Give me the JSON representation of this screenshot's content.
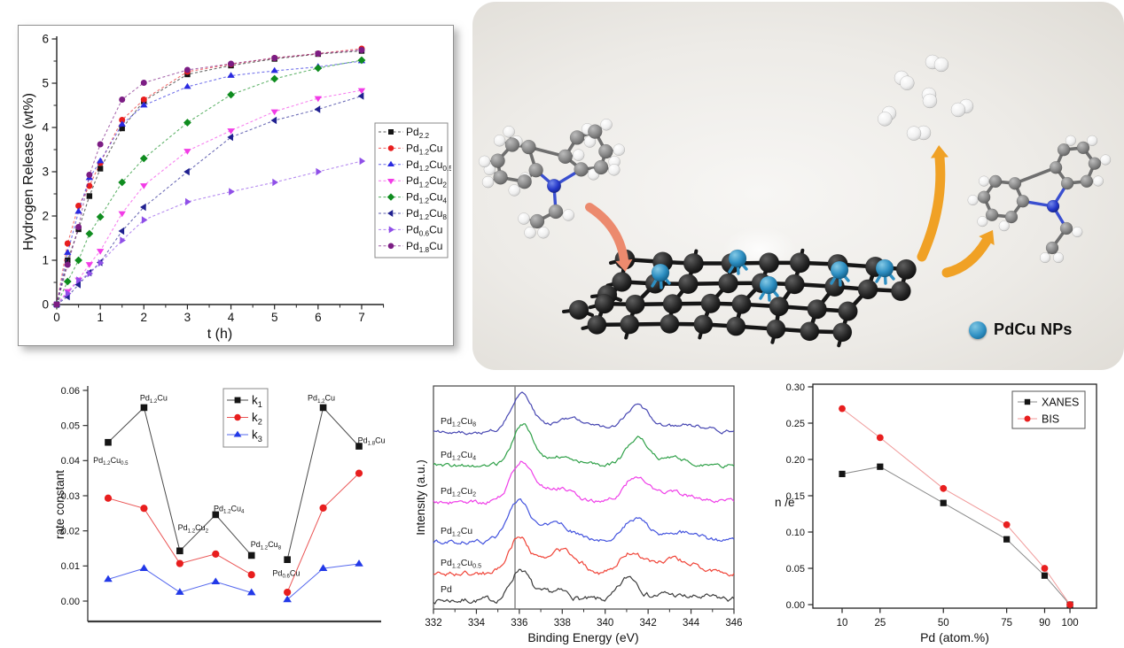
{
  "figure": {
    "scheme": {
      "legend_label": "PdCu NPs",
      "colors": {
        "reactant_arrow": "#ec8a6e",
        "release_arrow": "#f0a125",
        "nanoparticle": "#2e8fc2",
        "carbon_support": "#262626",
        "carbon_atom": "#8a8a8a",
        "hydrogen_atom": "#f4f4f4",
        "nitrogen_atom": "#2336c8"
      }
    }
  },
  "chart_data": [
    {
      "id": "hydrogen-release",
      "type": "line",
      "title": "",
      "xlabel": "t (h)",
      "ylabel": "Hydrogen Release (wt%)",
      "xlim": [
        0,
        7.5
      ],
      "ylim": [
        0,
        6
      ],
      "xticks": [
        0,
        1,
        2,
        3,
        4,
        5,
        6,
        7
      ],
      "yticks": [
        0,
        1,
        2,
        3,
        4,
        5,
        6
      ],
      "grid": false,
      "legend_position": "right",
      "x": [
        0,
        0.25,
        0.5,
        0.75,
        1,
        1.5,
        2,
        3,
        4,
        5,
        6,
        7
      ],
      "series": [
        {
          "name": "Pd_{2.2}",
          "color": "#151515",
          "marker": "square",
          "values": [
            0,
            1.0,
            1.7,
            2.45,
            3.07,
            3.98,
            4.6,
            5.2,
            5.4,
            5.55,
            5.66,
            5.73
          ]
        },
        {
          "name": "Pd_{1.2}Cu",
          "color": "#e81e1e",
          "marker": "circle",
          "values": [
            0,
            1.38,
            2.23,
            2.68,
            3.2,
            4.17,
            4.63,
            5.26,
            5.43,
            5.57,
            5.67,
            5.78
          ]
        },
        {
          "name": "Pd_{1.2}Cu_{0.5}",
          "color": "#2a2ae0",
          "marker": "triangle-up",
          "values": [
            0,
            1.17,
            2.1,
            2.86,
            3.24,
            4.07,
            4.5,
            4.92,
            5.17,
            5.28,
            5.37,
            5.5
          ]
        },
        {
          "name": "Pd_{1.2}Cu_{2}",
          "color": "#f23ce6",
          "marker": "triangle-down",
          "values": [
            0,
            0.3,
            0.56,
            0.91,
            1.21,
            2.06,
            2.69,
            3.47,
            3.93,
            4.36,
            4.66,
            4.84
          ]
        },
        {
          "name": "Pd_{1.2}Cu_{4}",
          "color": "#0f8c1f",
          "marker": "diamond",
          "values": [
            0,
            0.52,
            1.0,
            1.6,
            1.98,
            2.76,
            3.3,
            4.11,
            4.74,
            5.1,
            5.34,
            5.52
          ]
        },
        {
          "name": "Pd_{1.2}Cu_{8}",
          "color": "#202090",
          "marker": "triangle-left",
          "values": [
            0,
            0.18,
            0.45,
            0.72,
            0.95,
            1.66,
            2.2,
            3.0,
            3.78,
            4.16,
            4.41,
            4.71
          ]
        },
        {
          "name": "Pd_{0.6}Cu",
          "color": "#8f4fe8",
          "marker": "triangle-right",
          "values": [
            0,
            0.25,
            0.55,
            0.7,
            0.94,
            1.45,
            1.91,
            2.32,
            2.55,
            2.76,
            3.0,
            3.24
          ]
        },
        {
          "name": "Pd_{1.8}Cu",
          "color": "#7c1d84",
          "marker": "circle",
          "values": [
            0,
            0.9,
            1.75,
            2.93,
            3.62,
            4.63,
            5.01,
            5.3,
            5.44,
            5.57,
            5.67,
            5.75
          ]
        }
      ]
    },
    {
      "id": "rate-constant",
      "type": "scatter",
      "xlabel": "",
      "ylabel": "rate constant",
      "ylim": [
        -0.006,
        0.062
      ],
      "yticks": [
        0.0,
        0.01,
        0.02,
        0.03,
        0.04,
        0.05,
        0.06
      ],
      "grid": false,
      "legend_position": "top-center",
      "series": [
        {
          "name": "k_{1}",
          "color": "#151515",
          "line_color": "#4a4a4a",
          "marker": "square",
          "segments": [
            {
              "x": [
                1,
                2,
                3,
                4,
                5
              ],
              "values": [
                0.0452,
                0.0551,
                0.0143,
                0.0246,
                0.013
              ]
            },
            {
              "x": [
                6,
                7,
                8
              ],
              "values": [
                0.0118,
                0.0551,
                0.0441
              ]
            }
          ]
        },
        {
          "name": "k_{2}",
          "color": "#e81e1e",
          "line_color": "#ea5555",
          "marker": "circle",
          "segments": [
            {
              "x": [
                1,
                2,
                3,
                4,
                5
              ],
              "values": [
                0.0293,
                0.0264,
                0.0107,
                0.0134,
                0.0075
              ]
            },
            {
              "x": [
                6,
                7,
                8
              ],
              "values": [
                0.0025,
                0.0265,
                0.0364
              ]
            }
          ]
        },
        {
          "name": "k_{3}",
          "color": "#2239e8",
          "line_color": "#5568ee",
          "marker": "triangle-up",
          "segments": [
            {
              "x": [
                1,
                2,
                3,
                4,
                5
              ],
              "values": [
                0.0062,
                0.0093,
                0.0025,
                0.0055,
                0.0024
              ]
            },
            {
              "x": [
                6,
                7,
                8
              ],
              "values": [
                0.0004,
                0.0093,
                0.0106
              ]
            }
          ]
        }
      ],
      "point_labels": [
        {
          "text": "Pd_{1.2}Cu_{0.5}",
          "x": 1.07,
          "y": 0.0401
        },
        {
          "text": "Pd_{1.2}Cu",
          "x": 2.27,
          "y": 0.0578
        },
        {
          "text": "Pd_{1.2}Cu_{2}",
          "x": 3.37,
          "y": 0.0209
        },
        {
          "text": "Pd_{1.2}Cu_{4}",
          "x": 4.37,
          "y": 0.0264
        },
        {
          "text": "Pd_{1.2}Cu_{8}",
          "x": 5.4,
          "y": 0.0161
        },
        {
          "text": "Pd_{0.6}Cu",
          "x": 5.97,
          "y": 0.008
        },
        {
          "text": "Pd_{1.2}Cu",
          "x": 6.95,
          "y": 0.0578
        },
        {
          "text": "Pd_{1.8}Cu",
          "x": 8.35,
          "y": 0.0458
        }
      ]
    },
    {
      "id": "pd3d-xps",
      "type": "line",
      "xlabel": "Binding Energy (eV)",
      "ylabel": "Intensity (a.u.)",
      "xlim": [
        332,
        346
      ],
      "xticks": [
        332,
        334,
        336,
        338,
        340,
        342,
        344,
        346
      ],
      "ref_line_x": 335.8,
      "grid": false,
      "curves": [
        {
          "label": "Pd",
          "color": "#3c3c3c",
          "peaks": [
            [
              336.05,
              0.72,
              0.42
            ],
            [
              337.3,
              0.1,
              0.5
            ],
            [
              338.0,
              0.14,
              0.5
            ],
            [
              341.15,
              0.52,
              0.45
            ],
            [
              342.8,
              0.13,
              0.6
            ],
            [
              344.6,
              0.06,
              0.8
            ]
          ],
          "noise": 0.045
        },
        {
          "label": "Pd_{1.2}Cu_{0.5}",
          "color": "#f04438",
          "peaks": [
            [
              336.0,
              0.82,
              0.5
            ],
            [
              338.0,
              0.52,
              0.75
            ],
            [
              341.2,
              0.46,
              0.5
            ],
            [
              342.9,
              0.26,
              0.8
            ],
            [
              344.0,
              0.12,
              0.8
            ]
          ],
          "noise": 0.04
        },
        {
          "label": "Pd_{1.2}Cu",
          "color": "#4353de",
          "peaks": [
            [
              335.95,
              0.85,
              0.5
            ],
            [
              337.7,
              0.4,
              0.8
            ],
            [
              341.35,
              0.5,
              0.55
            ],
            [
              343.4,
              0.22,
              0.9
            ]
          ],
          "noise": 0.035
        },
        {
          "label": "Pd_{1.2}Cu_{2}",
          "color": "#ef3fe8",
          "peaks": [
            [
              336.1,
              0.9,
              0.5
            ],
            [
              337.7,
              0.35,
              0.7
            ],
            [
              341.4,
              0.56,
              0.55
            ],
            [
              343.2,
              0.22,
              0.8
            ]
          ],
          "noise": 0.035
        },
        {
          "label": "Pd_{1.2}Cu_{4}",
          "color": "#2fa048",
          "peaks": [
            [
              336.15,
              0.92,
              0.45
            ],
            [
              337.9,
              0.22,
              0.8
            ],
            [
              341.5,
              0.62,
              0.5
            ],
            [
              343.2,
              0.16,
              0.7
            ]
          ],
          "noise": 0.03
        },
        {
          "label": "Pd_{1.2}Cu_{8}",
          "color": "#4747b2",
          "peaks": [
            [
              336.1,
              0.88,
              0.5
            ],
            [
              338.4,
              0.27,
              0.9
            ],
            [
              341.5,
              0.55,
              0.6
            ],
            [
              343.8,
              0.16,
              0.9
            ]
          ],
          "noise": 0.03
        }
      ]
    },
    {
      "id": "n-over-e",
      "type": "line",
      "xlabel": "Pd (atom.%)",
      "ylabel": "n /e",
      "xlim": [
        -2,
        111
      ],
      "ylim": [
        -0.02,
        0.3
      ],
      "xticks": [
        10,
        25,
        50,
        75,
        90,
        100
      ],
      "yticks": [
        0.0,
        0.05,
        0.1,
        0.15,
        0.2,
        0.25,
        0.3
      ],
      "grid": false,
      "legend_position": "top-right",
      "x": [
        10,
        25,
        50,
        75,
        90,
        100
      ],
      "series": [
        {
          "name": "XANES",
          "color": "#151515",
          "line_color": "#8a8a8a",
          "marker": "square",
          "values": [
            0.18,
            0.19,
            0.14,
            0.09,
            0.04,
            0.0
          ]
        },
        {
          "name": "BIS",
          "color": "#e81e1e",
          "line_color": "#f09a9a",
          "marker": "circle",
          "values": [
            0.27,
            0.23,
            0.16,
            0.11,
            0.05,
            0.0
          ]
        }
      ]
    }
  ]
}
